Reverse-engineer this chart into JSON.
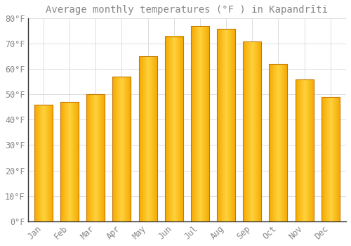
{
  "title": "Average monthly temperatures (°F ) in Kapandrīti",
  "months": [
    "Jan",
    "Feb",
    "Mar",
    "Apr",
    "May",
    "Jun",
    "Jul",
    "Aug",
    "Sep",
    "Oct",
    "Nov",
    "Dec"
  ],
  "values": [
    46,
    47,
    50,
    57,
    65,
    73,
    77,
    76,
    71,
    62,
    56,
    49
  ],
  "bar_color_left": "#F5A800",
  "bar_color_mid": "#FFD040",
  "bar_color_right": "#F5A800",
  "bar_edge_color": "#C87800",
  "background_color": "#FFFFFF",
  "grid_color": "#DDDDDD",
  "text_color": "#888888",
  "axis_color": "#333333",
  "ylim": [
    0,
    80
  ],
  "yticks": [
    0,
    10,
    20,
    30,
    40,
    50,
    60,
    70,
    80
  ],
  "title_fontsize": 10,
  "tick_fontsize": 8.5,
  "bar_width": 0.7
}
